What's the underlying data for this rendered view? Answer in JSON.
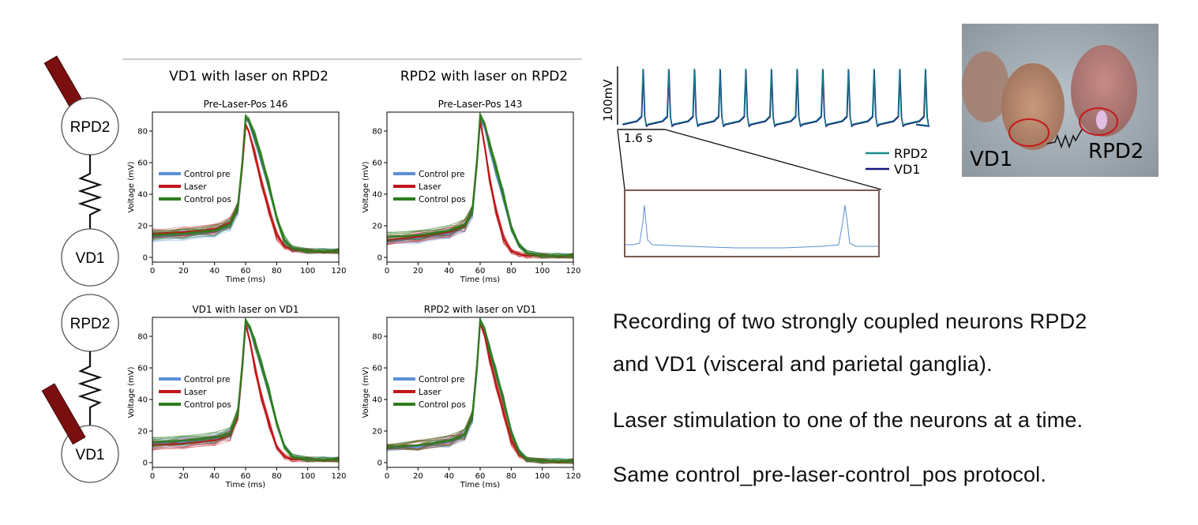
{
  "circuit": {
    "top_nodes": [
      "RPD2",
      "VD1"
    ],
    "bottom_nodes": [
      "RPD2",
      "VD1"
    ]
  },
  "panels_header": {
    "left": "VD1 with laser on RPD2",
    "right": "RPD2 with laser on RPD2"
  },
  "colors": {
    "control_pre": "#5b8fd6",
    "laser": "#c0161b",
    "control_pos": "#2e7d1e",
    "laser_bar": "#7b0f0f",
    "rpd2_trace": "#1a8a8a",
    "vd1_trace": "#14147a"
  },
  "chart_data": [
    {
      "type": "line",
      "title": "Pre-Laser-Pos 146",
      "xlabel": "Time (ms)",
      "ylabel": "Voltage (mV)",
      "xlim": [
        0,
        120
      ],
      "ylim": [
        -3,
        92
      ],
      "xticks": [
        0,
        20,
        40,
        60,
        80,
        100,
        120
      ],
      "yticks": [
        0,
        20,
        40,
        60,
        80
      ],
      "legend": [
        "Control pre",
        "Laser",
        "Control pos"
      ],
      "legend_loc": "center-left",
      "series": [
        {
          "name": "Control pre",
          "x": [
            0,
            20,
            40,
            50,
            55,
            58,
            60,
            62,
            66,
            70,
            75,
            80,
            85,
            90,
            100,
            110,
            120
          ],
          "y": [
            13,
            14,
            16,
            20,
            30,
            60,
            88,
            86,
            75,
            62,
            45,
            25,
            10,
            5,
            4,
            4,
            4
          ]
        },
        {
          "name": "Laser",
          "x": [
            0,
            20,
            40,
            50,
            55,
            58,
            60,
            62,
            66,
            70,
            75,
            80,
            85,
            90,
            100,
            110,
            120
          ],
          "y": [
            15,
            16,
            18,
            22,
            32,
            60,
            84,
            80,
            65,
            48,
            30,
            14,
            7,
            5,
            4,
            4,
            4
          ]
        },
        {
          "name": "Control pos",
          "x": [
            0,
            20,
            40,
            50,
            55,
            58,
            60,
            62,
            66,
            70,
            75,
            80,
            85,
            90,
            100,
            110,
            120
          ],
          "y": [
            14,
            15,
            17,
            21,
            32,
            62,
            89,
            87,
            77,
            64,
            46,
            26,
            11,
            6,
            4,
            4,
            4
          ]
        }
      ]
    },
    {
      "type": "line",
      "title": "Pre-Laser-Pos 143",
      "xlabel": "Time (ms)",
      "ylabel": "Voltage (mV)",
      "xlim": [
        0,
        120
      ],
      "ylim": [
        -3,
        92
      ],
      "xticks": [
        0,
        20,
        40,
        60,
        80,
        100,
        120
      ],
      "yticks": [
        0,
        20,
        40,
        60,
        80
      ],
      "legend": [
        "Control pre",
        "Laser",
        "Control pos"
      ],
      "legend_loc": "center-left",
      "series": [
        {
          "name": "Control pre",
          "x": [
            0,
            20,
            40,
            50,
            55,
            58,
            60,
            63,
            66,
            70,
            75,
            80,
            85,
            90,
            100,
            110,
            120
          ],
          "y": [
            10,
            12,
            15,
            19,
            28,
            60,
            88,
            82,
            70,
            55,
            38,
            18,
            7,
            3,
            1,
            1,
            1
          ]
        },
        {
          "name": "Laser",
          "x": [
            0,
            20,
            40,
            50,
            55,
            58,
            60,
            63,
            66,
            70,
            75,
            80,
            85,
            90,
            100,
            110,
            120
          ],
          "y": [
            11,
            13,
            16,
            20,
            30,
            62,
            87,
            70,
            50,
            30,
            12,
            4,
            2,
            1,
            1,
            1,
            1
          ]
        },
        {
          "name": "Control pos",
          "x": [
            0,
            20,
            40,
            50,
            55,
            58,
            60,
            63,
            66,
            70,
            75,
            80,
            85,
            90,
            100,
            110,
            120
          ],
          "y": [
            13,
            14,
            17,
            21,
            30,
            62,
            90,
            84,
            72,
            58,
            40,
            20,
            8,
            3,
            1,
            1,
            1
          ]
        }
      ]
    },
    {
      "type": "line",
      "title": "VD1 with laser on VD1",
      "xlabel": "Time (ms)",
      "ylabel": "Voltage (mV)",
      "xlim": [
        0,
        120
      ],
      "ylim": [
        -3,
        92
      ],
      "xticks": [
        0,
        20,
        40,
        60,
        80,
        100,
        120
      ],
      "yticks": [
        0,
        20,
        40,
        60,
        80
      ],
      "legend": [
        "Control pre",
        "Laser",
        "Control pos"
      ],
      "legend_loc": "center-left",
      "series": [
        {
          "name": "Control pre",
          "x": [
            0,
            20,
            40,
            50,
            55,
            58,
            60,
            63,
            66,
            70,
            75,
            80,
            85,
            90,
            100,
            110,
            120
          ],
          "y": [
            12,
            13,
            15,
            18,
            30,
            62,
            89,
            84,
            75,
            62,
            45,
            25,
            10,
            4,
            2,
            2,
            2
          ]
        },
        {
          "name": "Laser",
          "x": [
            0,
            20,
            40,
            50,
            55,
            58,
            60,
            63,
            66,
            70,
            75,
            80,
            85,
            90,
            100,
            110,
            120
          ],
          "y": [
            11,
            12,
            14,
            17,
            30,
            62,
            88,
            76,
            60,
            42,
            25,
            10,
            4,
            2,
            2,
            2,
            2
          ]
        },
        {
          "name": "Control pos",
          "x": [
            0,
            20,
            40,
            50,
            55,
            58,
            60,
            63,
            66,
            70,
            75,
            80,
            85,
            90,
            100,
            110,
            120
          ],
          "y": [
            13,
            14,
            16,
            19,
            32,
            64,
            90,
            85,
            76,
            63,
            46,
            26,
            10,
            4,
            2,
            2,
            2
          ]
        }
      ]
    },
    {
      "type": "line",
      "title": "RPD2 with laser on VD1",
      "xlabel": "Time (ms)",
      "ylabel": "Voltage (mV)",
      "xlim": [
        0,
        120
      ],
      "ylim": [
        -3,
        92
      ],
      "xticks": [
        0,
        20,
        40,
        60,
        80,
        100,
        120
      ],
      "yticks": [
        0,
        20,
        40,
        60,
        80
      ],
      "legend": [
        "Control pre",
        "Laser",
        "Control pos"
      ],
      "legend_loc": "center-left",
      "series": [
        {
          "name": "Control pre",
          "x": [
            0,
            20,
            40,
            50,
            55,
            58,
            60,
            63,
            66,
            70,
            75,
            80,
            85,
            90,
            100,
            110,
            120
          ],
          "y": [
            9,
            10,
            13,
            17,
            28,
            60,
            90,
            84,
            72,
            58,
            40,
            20,
            7,
            2,
            1,
            1,
            1
          ]
        },
        {
          "name": "Laser",
          "x": [
            0,
            20,
            40,
            50,
            55,
            58,
            60,
            63,
            66,
            70,
            75,
            80,
            85,
            90,
            100,
            110,
            120
          ],
          "y": [
            10,
            11,
            14,
            18,
            30,
            62,
            89,
            80,
            66,
            50,
            32,
            14,
            5,
            2,
            1,
            1,
            1
          ]
        },
        {
          "name": "Control pos",
          "x": [
            0,
            20,
            40,
            50,
            55,
            58,
            60,
            63,
            66,
            70,
            75,
            80,
            85,
            90,
            100,
            110,
            120
          ],
          "y": [
            10,
            11,
            14,
            18,
            30,
            62,
            90,
            84,
            72,
            58,
            40,
            20,
            7,
            2,
            1,
            1,
            1
          ]
        }
      ]
    }
  ],
  "trace": {
    "scale_y_label": "100mV",
    "scale_x_label": "1.6 s",
    "legend": [
      "RPD2",
      "VD1"
    ]
  },
  "photo": {
    "labels": [
      "VD1",
      "RPD2"
    ]
  },
  "description": [
    "Recording of two strongly coupled neurons RPD2",
    "and VD1 (visceral and parietal ganglia).",
    "Laser stimulation to one of the neurons at a time.",
    "Same control_pre-laser-control_pos protocol."
  ]
}
